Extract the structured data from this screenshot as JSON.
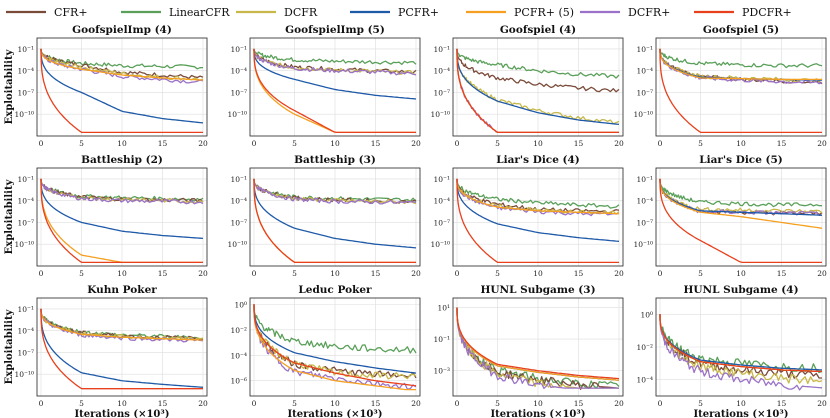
{
  "chart_data": {
    "type": "line",
    "legend": [
      {
        "name": "CFR+",
        "color": "#7b4b3a"
      },
      {
        "name": "LinearCFR",
        "color": "#5aa05a"
      },
      {
        "name": "DCFR",
        "color": "#c8b84a"
      },
      {
        "name": "PCFR+",
        "color": "#1f5aa8"
      },
      {
        "name": "PCFR+ (5)",
        "color": "#f5a020"
      },
      {
        "name": "DCFR+",
        "color": "#9b72c8"
      },
      {
        "name": "PDCFR+",
        "color": "#e8401c"
      }
    ],
    "legend_position": "top",
    "xlabel": "Iterations (×10³)",
    "ylabel": "Exploitability",
    "x_ticks": [
      "0",
      "5",
      "10",
      "15",
      "20"
    ],
    "xlim": [
      0,
      20
    ],
    "panels": [
      {
        "title": "GoofspielImp (4)",
        "yscale": "log",
        "ticks": [
          {
            "label": "10⁻¹",
            "exp": -1
          },
          {
            "label": "10⁻⁴",
            "exp": -4
          },
          {
            "label": "10⁻⁷",
            "exp": -7
          },
          {
            "label": "10⁻¹⁰",
            "exp": -10
          }
        ],
        "yrange": [
          -13,
          0.5
        ],
        "series": {
          "CFR+": [
            -1,
            -3.2,
            -4.2,
            -4.6,
            -5.0
          ],
          "LinearCFR": [
            -1,
            -3.0,
            -3.3,
            -3.4,
            -3.5
          ],
          "DCFR": [
            -1,
            -3.5,
            -4.4,
            -4.9,
            -5.2
          ],
          "PCFR+": [
            -1,
            -7.0,
            -9.6,
            -10.6,
            -11.2
          ],
          "PCFR+ (5)": [
            -1,
            -3.8,
            -4.6,
            -5.0,
            -5.3
          ],
          "DCFR+": [
            -1,
            -3.8,
            -4.8,
            -5.2,
            -5.6
          ],
          "PDCFR+": [
            -1,
            -12.5,
            -12.5,
            -12.5,
            -12.5
          ]
        }
      },
      {
        "title": "GoofspielImp (5)",
        "yscale": "log",
        "ticks": [
          {
            "label": "10⁻¹",
            "exp": -1
          },
          {
            "label": "10⁻⁴",
            "exp": -4
          },
          {
            "label": "10⁻⁷",
            "exp": -7
          },
          {
            "label": "10⁻¹⁰",
            "exp": -10
          }
        ],
        "yrange": [
          -13,
          0.5
        ],
        "series": {
          "CFR+": [
            -1,
            -3.5,
            -3.8,
            -4.0,
            -4.2
          ],
          "LinearCFR": [
            -1,
            -2.5,
            -2.7,
            -2.8,
            -2.9
          ],
          "DCFR": [
            -1,
            -3.6,
            -3.9,
            -4.1,
            -4.3
          ],
          "PCFR+": [
            -1,
            -5.2,
            -6.6,
            -7.4,
            -7.9
          ],
          "PCFR+ (5)": [
            -1,
            -10.0,
            -12.5,
            -12.5,
            -12.5
          ],
          "DCFR+": [
            -1,
            -3.7,
            -4.0,
            -4.2,
            -4.4
          ],
          "PDCFR+": [
            -1,
            -9.5,
            -12.5,
            -12.5,
            -12.5
          ]
        }
      },
      {
        "title": "Goofspiel (4)",
        "yscale": "log",
        "ticks": [
          {
            "label": "10⁻¹",
            "exp": -1
          },
          {
            "label": "10⁻⁴",
            "exp": -4
          },
          {
            "label": "10⁻⁷",
            "exp": -7
          },
          {
            "label": "10⁻¹⁰",
            "exp": -10
          }
        ],
        "yrange": [
          -13,
          0.5
        ],
        "series": {
          "CFR+": [
            -1,
            -5.0,
            -5.9,
            -6.4,
            -6.8
          ],
          "LinearCFR": [
            -1,
            -3.2,
            -4.0,
            -4.5,
            -4.8
          ],
          "DCFR": [
            -1,
            -8.0,
            -9.5,
            -10.5,
            -11.2
          ],
          "PCFR+": [
            -1,
            -8.2,
            -9.8,
            -10.8,
            -11.4
          ],
          "PCFR+ (5)": [
            -1,
            -12.5,
            -12.5,
            -12.5,
            -12.5
          ],
          "DCFR+": [
            -1,
            -12.5,
            -12.5,
            -12.5,
            -12.5
          ],
          "PDCFR+": [
            -1,
            -12.5,
            -12.5,
            -12.5,
            -12.5
          ]
        }
      },
      {
        "title": "Goofspiel (5)",
        "yscale": "log",
        "ticks": [
          {
            "label": "10⁻¹",
            "exp": -1
          },
          {
            "label": "10⁻⁴",
            "exp": -4
          },
          {
            "label": "10⁻⁷",
            "exp": -7
          },
          {
            "label": "10⁻¹⁰",
            "exp": -10
          }
        ],
        "yrange": [
          -13,
          0.5
        ],
        "series": {
          "CFR+": [
            -1,
            -4.8,
            -5.2,
            -5.4,
            -5.6
          ],
          "LinearCFR": [
            -1,
            -3.0,
            -3.2,
            -3.3,
            -3.3
          ],
          "DCFR": [
            -1,
            -4.8,
            -5.0,
            -5.2,
            -5.4
          ],
          "PCFR+": [
            -1,
            -4.9,
            -5.1,
            -5.2,
            -5.3
          ],
          "PCFR+ (5)": [
            -1,
            -5.0,
            -5.1,
            -5.2,
            -5.2
          ],
          "DCFR+": [
            -1,
            -5.0,
            -5.3,
            -5.5,
            -5.7
          ],
          "PDCFR+": [
            -1,
            -12.5,
            -12.5,
            -12.5,
            -12.5
          ]
        }
      },
      {
        "title": "Battleship (2)",
        "yscale": "log",
        "ticks": [
          {
            "label": "10⁻¹",
            "exp": -1
          },
          {
            "label": "10⁻⁴",
            "exp": -4
          },
          {
            "label": "10⁻⁷",
            "exp": -7
          },
          {
            "label": "10⁻¹⁰",
            "exp": -10
          }
        ],
        "yrange": [
          -13,
          0.5
        ],
        "series": {
          "CFR+": [
            -1,
            -3.5,
            -3.8,
            -3.9,
            -4.0
          ],
          "LinearCFR": [
            -1,
            -3.4,
            -3.6,
            -3.7,
            -3.8
          ],
          "DCFR": [
            -1,
            -3.6,
            -3.9,
            -4.0,
            -4.1
          ],
          "PCFR+": [
            -1,
            -7.0,
            -8.2,
            -8.8,
            -9.2
          ],
          "PCFR+ (5)": [
            -1,
            -11.5,
            -12.5,
            -12.5,
            -12.5
          ],
          "DCFR+": [
            -1,
            -3.7,
            -4.0,
            -4.1,
            -4.2
          ],
          "PDCFR+": [
            -1,
            -12.5,
            -12.5,
            -12.5,
            -12.5
          ]
        }
      },
      {
        "title": "Battleship (3)",
        "yscale": "log",
        "ticks": [
          {
            "label": "10⁻¹",
            "exp": -1
          },
          {
            "label": "10⁻⁴",
            "exp": -4
          },
          {
            "label": "10⁻⁷",
            "exp": -7
          },
          {
            "label": "10⁻¹⁰",
            "exp": -10
          }
        ],
        "yrange": [
          -13,
          0.5
        ],
        "series": {
          "CFR+": [
            -1,
            -3.6,
            -3.9,
            -4.0,
            -4.1
          ],
          "LinearCFR": [
            -1,
            -3.5,
            -3.7,
            -3.8,
            -3.9
          ],
          "DCFR": [
            -1,
            -3.7,
            -4.0,
            -4.1,
            -4.2
          ],
          "PCFR+": [
            -1,
            -7.8,
            -9.2,
            -10.0,
            -10.5
          ],
          "PCFR+ (5)": [
            -1,
            -12.5,
            -12.5,
            -12.5,
            -12.5
          ],
          "DCFR+": [
            -1,
            -3.8,
            -4.1,
            -4.2,
            -4.3
          ],
          "PDCFR+": [
            -1,
            -12.5,
            -12.5,
            -12.5,
            -12.5
          ]
        }
      },
      {
        "title": "Liar's Dice (4)",
        "yscale": "log",
        "ticks": [
          {
            "label": "10⁻¹",
            "exp": -1
          },
          {
            "label": "10⁻⁴",
            "exp": -4
          },
          {
            "label": "10⁻⁷",
            "exp": -7
          },
          {
            "label": "10⁻¹⁰",
            "exp": -10
          }
        ],
        "yrange": [
          -13,
          0.5
        ],
        "series": {
          "CFR+": [
            -1,
            -4.5,
            -5.2,
            -5.4,
            -5.5
          ],
          "LinearCFR": [
            -1,
            -3.8,
            -4.3,
            -4.6,
            -4.8
          ],
          "DCFR": [
            -1,
            -4.8,
            -5.3,
            -5.6,
            -5.7
          ],
          "PCFR+": [
            -1,
            -7.2,
            -8.4,
            -9.1,
            -9.6
          ],
          "PCFR+ (5)": [
            -1,
            -4.9,
            -5.4,
            -5.6,
            -5.8
          ],
          "DCFR+": [
            -1,
            -5.0,
            -5.5,
            -5.8,
            -5.9
          ],
          "PDCFR+": [
            -1,
            -12.5,
            -12.5,
            -12.5,
            -12.5
          ]
        }
      },
      {
        "title": "Liar's Dice (5)",
        "yscale": "log",
        "ticks": [
          {
            "label": "10⁻¹",
            "exp": -1
          },
          {
            "label": "10⁻⁴",
            "exp": -4
          },
          {
            "label": "10⁻⁷",
            "exp": -7
          },
          {
            "label": "10⁻¹⁰",
            "exp": -10
          }
        ],
        "yrange": [
          -13,
          0.5
        ],
        "series": {
          "CFR+": [
            -1,
            -5.4,
            -5.6,
            -5.7,
            -5.8
          ],
          "LinearCFR": [
            -1,
            -4.2,
            -4.4,
            -4.6,
            -4.5
          ],
          "DCFR": [
            -1,
            -5.2,
            -5.3,
            -5.4,
            -5.5
          ],
          "PCFR+": [
            -1,
            -5.4,
            -5.6,
            -5.8,
            -6.0
          ],
          "PCFR+ (5)": [
            -1,
            -5.6,
            -6.2,
            -7.0,
            -7.8
          ],
          "DCFR+": [
            -1,
            -5.5,
            -5.6,
            -5.7,
            -5.8
          ],
          "PDCFR+": [
            -1,
            -9.5,
            -12.5,
            -12.5,
            -12.5
          ]
        }
      },
      {
        "title": "Kuhn Poker",
        "yscale": "log",
        "ticks": [
          {
            "label": "10⁻¹",
            "exp": -1
          },
          {
            "label": "10⁻⁴",
            "exp": -4
          },
          {
            "label": "10⁻⁷",
            "exp": -7
          },
          {
            "label": "10⁻¹⁰",
            "exp": -10
          }
        ],
        "yrange": [
          -13,
          0.5
        ],
        "series": {
          "CFR+": [
            -1,
            -4.3,
            -4.7,
            -4.9,
            -5.1
          ],
          "LinearCFR": [
            -1,
            -4.2,
            -4.6,
            -4.8,
            -5.0
          ],
          "DCFR": [
            -1,
            -4.4,
            -4.8,
            -5.0,
            -5.2
          ],
          "PCFR+": [
            -1,
            -9.8,
            -10.9,
            -11.4,
            -11.8
          ],
          "PCFR+ (5)": [
            -1,
            -4.5,
            -4.9,
            -5.1,
            -5.3
          ],
          "DCFR+": [
            -1,
            -4.6,
            -5.0,
            -5.2,
            -5.4
          ],
          "PDCFR+": [
            -1,
            -12.0,
            -12.0,
            -12.0,
            -12.0
          ]
        }
      },
      {
        "title": "Leduc Poker",
        "yscale": "log",
        "ticks": [
          {
            "label": "10⁰",
            "exp": 0
          },
          {
            "label": "10⁻²",
            "exp": -2
          },
          {
            "label": "10⁻⁴",
            "exp": -4
          },
          {
            "label": "10⁻⁶",
            "exp": -6
          }
        ],
        "yrange": [
          -7.2,
          0.5
        ],
        "series": {
          "CFR+": [
            0,
            -4.7,
            -5.2,
            -5.5,
            -5.6
          ],
          "LinearCFR": [
            0,
            -2.9,
            -3.3,
            -3.5,
            -3.6
          ],
          "DCFR": [
            0,
            -4.6,
            -5.4,
            -5.6,
            -5.6
          ],
          "PCFR+": [
            0,
            -3.8,
            -4.5,
            -5.0,
            -5.4
          ],
          "PCFR+ (5)": [
            0,
            -5.2,
            -6.0,
            -6.4,
            -6.8
          ],
          "DCFR+": [
            0,
            -5.3,
            -5.8,
            -6.2,
            -6.5
          ],
          "PDCFR+": [
            0,
            -4.6,
            -5.4,
            -6.0,
            -6.4
          ]
        }
      },
      {
        "title": "HUNL Subgame (3)",
        "yscale": "log",
        "ticks": [
          {
            "label": "10¹",
            "exp": 1
          },
          {
            "label": "10⁻¹",
            "exp": -1
          },
          {
            "label": "10⁻³",
            "exp": -3
          }
        ],
        "yrange": [
          -4.6,
          1.6
        ],
        "series": {
          "CFR+": [
            1,
            -3.1,
            -3.6,
            -3.9,
            -4.1
          ],
          "LinearCFR": [
            1,
            -3.0,
            -3.5,
            -3.8,
            -4.0
          ],
          "DCFR": [
            1,
            -3.2,
            -3.8,
            -4.1,
            -4.3
          ],
          "PCFR+": [
            1,
            -2.7,
            -3.1,
            -3.4,
            -3.6
          ],
          "PCFR+ (5)": [
            1,
            -2.7,
            -3.1,
            -3.4,
            -3.6
          ],
          "DCFR+": [
            1,
            -3.3,
            -3.9,
            -4.2,
            -4.4
          ],
          "PDCFR+": [
            1,
            -2.6,
            -3.0,
            -3.3,
            -3.5
          ]
        }
      },
      {
        "title": "HUNL Subgame (4)",
        "yscale": "log",
        "ticks": [
          {
            "label": "10⁰",
            "exp": 0
          },
          {
            "label": "10⁻²",
            "exp": -2
          },
          {
            "label": "10⁻⁴",
            "exp": -4
          }
        ],
        "yrange": [
          -5.0,
          1.0
        ],
        "series": {
          "CFR+": [
            0,
            -3.0,
            -3.4,
            -3.6,
            -3.8
          ],
          "LinearCFR": [
            0,
            -2.7,
            -3.0,
            -3.2,
            -3.3
          ],
          "DCFR": [
            0,
            -3.2,
            -3.6,
            -3.9,
            -4.1
          ],
          "PCFR+": [
            0,
            -2.8,
            -3.1,
            -3.3,
            -3.4
          ],
          "PCFR+ (5)": [
            0,
            -2.9,
            -3.2,
            -3.4,
            -3.5
          ],
          "DCFR+": [
            0,
            -3.5,
            -4.0,
            -4.3,
            -4.5
          ],
          "PDCFR+": [
            0,
            -2.9,
            -3.2,
            -3.4,
            -3.5
          ]
        }
      }
    ]
  }
}
